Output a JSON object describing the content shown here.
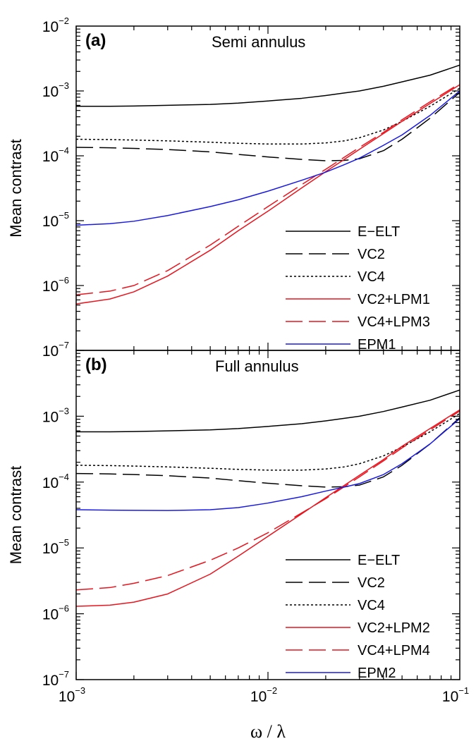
{
  "chart_data": [
    {
      "type": "line",
      "panel_label": "(a)",
      "title": "Semi annulus",
      "xlabel": "ω / λ",
      "ylabel": "Mean contrast",
      "xscale": "log",
      "yscale": "log",
      "xlim": [
        0.001,
        0.1
      ],
      "ylim": [
        1e-07,
        0.01
      ],
      "legend_position": "bottom-right",
      "x": [
        0.001,
        0.0015,
        0.002,
        0.003,
        0.005,
        0.007,
        0.01,
        0.015,
        0.02,
        0.025,
        0.03,
        0.04,
        0.05,
        0.07,
        0.1
      ],
      "series": [
        {
          "name": "E−ELT",
          "color": "#000000",
          "dash": "solid",
          "values": [
            0.00058,
            0.00058,
            0.000585,
            0.0006,
            0.00062,
            0.00065,
            0.0007,
            0.00077,
            0.00085,
            0.00093,
            0.001,
            0.00118,
            0.00138,
            0.00175,
            0.0025
          ]
        },
        {
          "name": "VC2",
          "color": "#000000",
          "dash": "longdash",
          "values": [
            0.000135,
            0.000133,
            0.00013,
            0.000125,
            0.000115,
            0.000105,
            9.6e-05,
            8.8e-05,
            8.4e-05,
            8.5e-05,
            9e-05,
            0.00012,
            0.00018,
            0.00038,
            0.00095
          ]
        },
        {
          "name": "VC4",
          "color": "#000000",
          "dash": "dotted",
          "values": [
            0.00018,
            0.000178,
            0.000175,
            0.00017,
            0.000162,
            0.000156,
            0.000152,
            0.000152,
            0.000158,
            0.00017,
            0.00019,
            0.00025,
            0.00034,
            0.00058,
            0.0011
          ]
        },
        {
          "name": "VC2+LPM1",
          "color": "#e8141e",
          "dash": "solid",
          "values": [
            5.2e-07,
            6.2e-07,
            8e-07,
            1.4e-06,
            3.5e-06,
            7e-06,
            1.4e-05,
            3.2e-05,
            5.7e-05,
            8.8e-05,
            0.000126,
            0.00022,
            0.00034,
            0.00064,
            0.00125
          ]
        },
        {
          "name": "VC4+LPM3",
          "color": "#e8141e",
          "dash": "longdash",
          "values": [
            7.2e-07,
            8.2e-07,
            1e-06,
            1.7e-06,
            4.2e-06,
            8.2e-06,
            1.65e-05,
            3.6e-05,
            6.2e-05,
            9.5e-05,
            0.000135,
            0.00023,
            0.00036,
            0.00068,
            0.0013
          ]
        },
        {
          "name": "EPM1",
          "color": "#1a1ae0",
          "dash": "solid",
          "values": [
            8.5e-06,
            9e-06,
            9.8e-06,
            1.2e-05,
            1.65e-05,
            2.1e-05,
            2.85e-05,
            4.2e-05,
            5.6e-05,
            7.3e-05,
            9.2e-05,
            0.000145,
            0.00021,
            0.00042,
            0.001
          ]
        }
      ]
    },
    {
      "type": "line",
      "panel_label": "(b)",
      "title": "Full annulus",
      "xlabel": "ω / λ",
      "ylabel": "Mean contrast",
      "xscale": "log",
      "yscale": "log",
      "xlim": [
        0.001,
        0.1
      ],
      "ylim": [
        1e-07,
        0.01
      ],
      "legend_position": "bottom-right",
      "x": [
        0.001,
        0.0015,
        0.002,
        0.003,
        0.005,
        0.007,
        0.01,
        0.015,
        0.02,
        0.025,
        0.03,
        0.04,
        0.05,
        0.07,
        0.1
      ],
      "series": [
        {
          "name": "E−ELT",
          "color": "#000000",
          "dash": "solid",
          "values": [
            0.00058,
            0.00058,
            0.000585,
            0.0006,
            0.00062,
            0.00065,
            0.0007,
            0.00077,
            0.00085,
            0.00093,
            0.001,
            0.00118,
            0.00138,
            0.00175,
            0.0025
          ]
        },
        {
          "name": "VC2",
          "color": "#000000",
          "dash": "longdash",
          "values": [
            0.000135,
            0.000133,
            0.00013,
            0.000125,
            0.000115,
            0.000105,
            9.6e-05,
            8.8e-05,
            8.4e-05,
            8.5e-05,
            9e-05,
            0.00012,
            0.00018,
            0.00038,
            0.00095
          ]
        },
        {
          "name": "VC4",
          "color": "#000000",
          "dash": "dotted",
          "values": [
            0.00018,
            0.000178,
            0.000175,
            0.00017,
            0.000162,
            0.000156,
            0.000152,
            0.000152,
            0.000158,
            0.00017,
            0.00019,
            0.00025,
            0.00034,
            0.00058,
            0.0011
          ]
        },
        {
          "name": "VC2+LPM2",
          "color": "#e8141e",
          "dash": "solid",
          "values": [
            1.3e-06,
            1.35e-06,
            1.5e-06,
            2e-06,
            4e-06,
            7.5e-06,
            1.5e-05,
            3.3e-05,
            5.8e-05,
            8.9e-05,
            0.000127,
            0.00022,
            0.00035,
            0.00065,
            0.00125
          ]
        },
        {
          "name": "VC4+LPM4",
          "color": "#e8141e",
          "dash": "longdash",
          "values": [
            2.3e-06,
            2.5e-06,
            2.9e-06,
            3.8e-06,
            6.5e-06,
            1e-05,
            1.7e-05,
            3.4e-05,
            5.6e-05,
            8.5e-05,
            0.00012,
            0.00021,
            0.00033,
            0.00062,
            0.0012
          ]
        },
        {
          "name": "EPM2",
          "color": "#1a1ae0",
          "dash": "solid",
          "values": [
            3.8e-05,
            3.75e-05,
            3.72e-05,
            3.7e-05,
            3.8e-05,
            4.1e-05,
            4.8e-05,
            6e-05,
            7.3e-05,
            8.4e-05,
            9.5e-05,
            0.00013,
            0.00019,
            0.00038,
            0.00092
          ]
        }
      ]
    }
  ],
  "x_tick_labels": [
    {
      "base": "10",
      "exp": "−3"
    },
    {
      "base": "10",
      "exp": "−2"
    },
    {
      "base": "10",
      "exp": "−1"
    }
  ],
  "y_tick_labels": [
    {
      "base": "10",
      "exp": "−2"
    },
    {
      "base": "10",
      "exp": "−3"
    },
    {
      "base": "10",
      "exp": "−4"
    },
    {
      "base": "10",
      "exp": "−5"
    },
    {
      "base": "10",
      "exp": "−6"
    },
    {
      "base": "10",
      "exp": "−7"
    }
  ]
}
